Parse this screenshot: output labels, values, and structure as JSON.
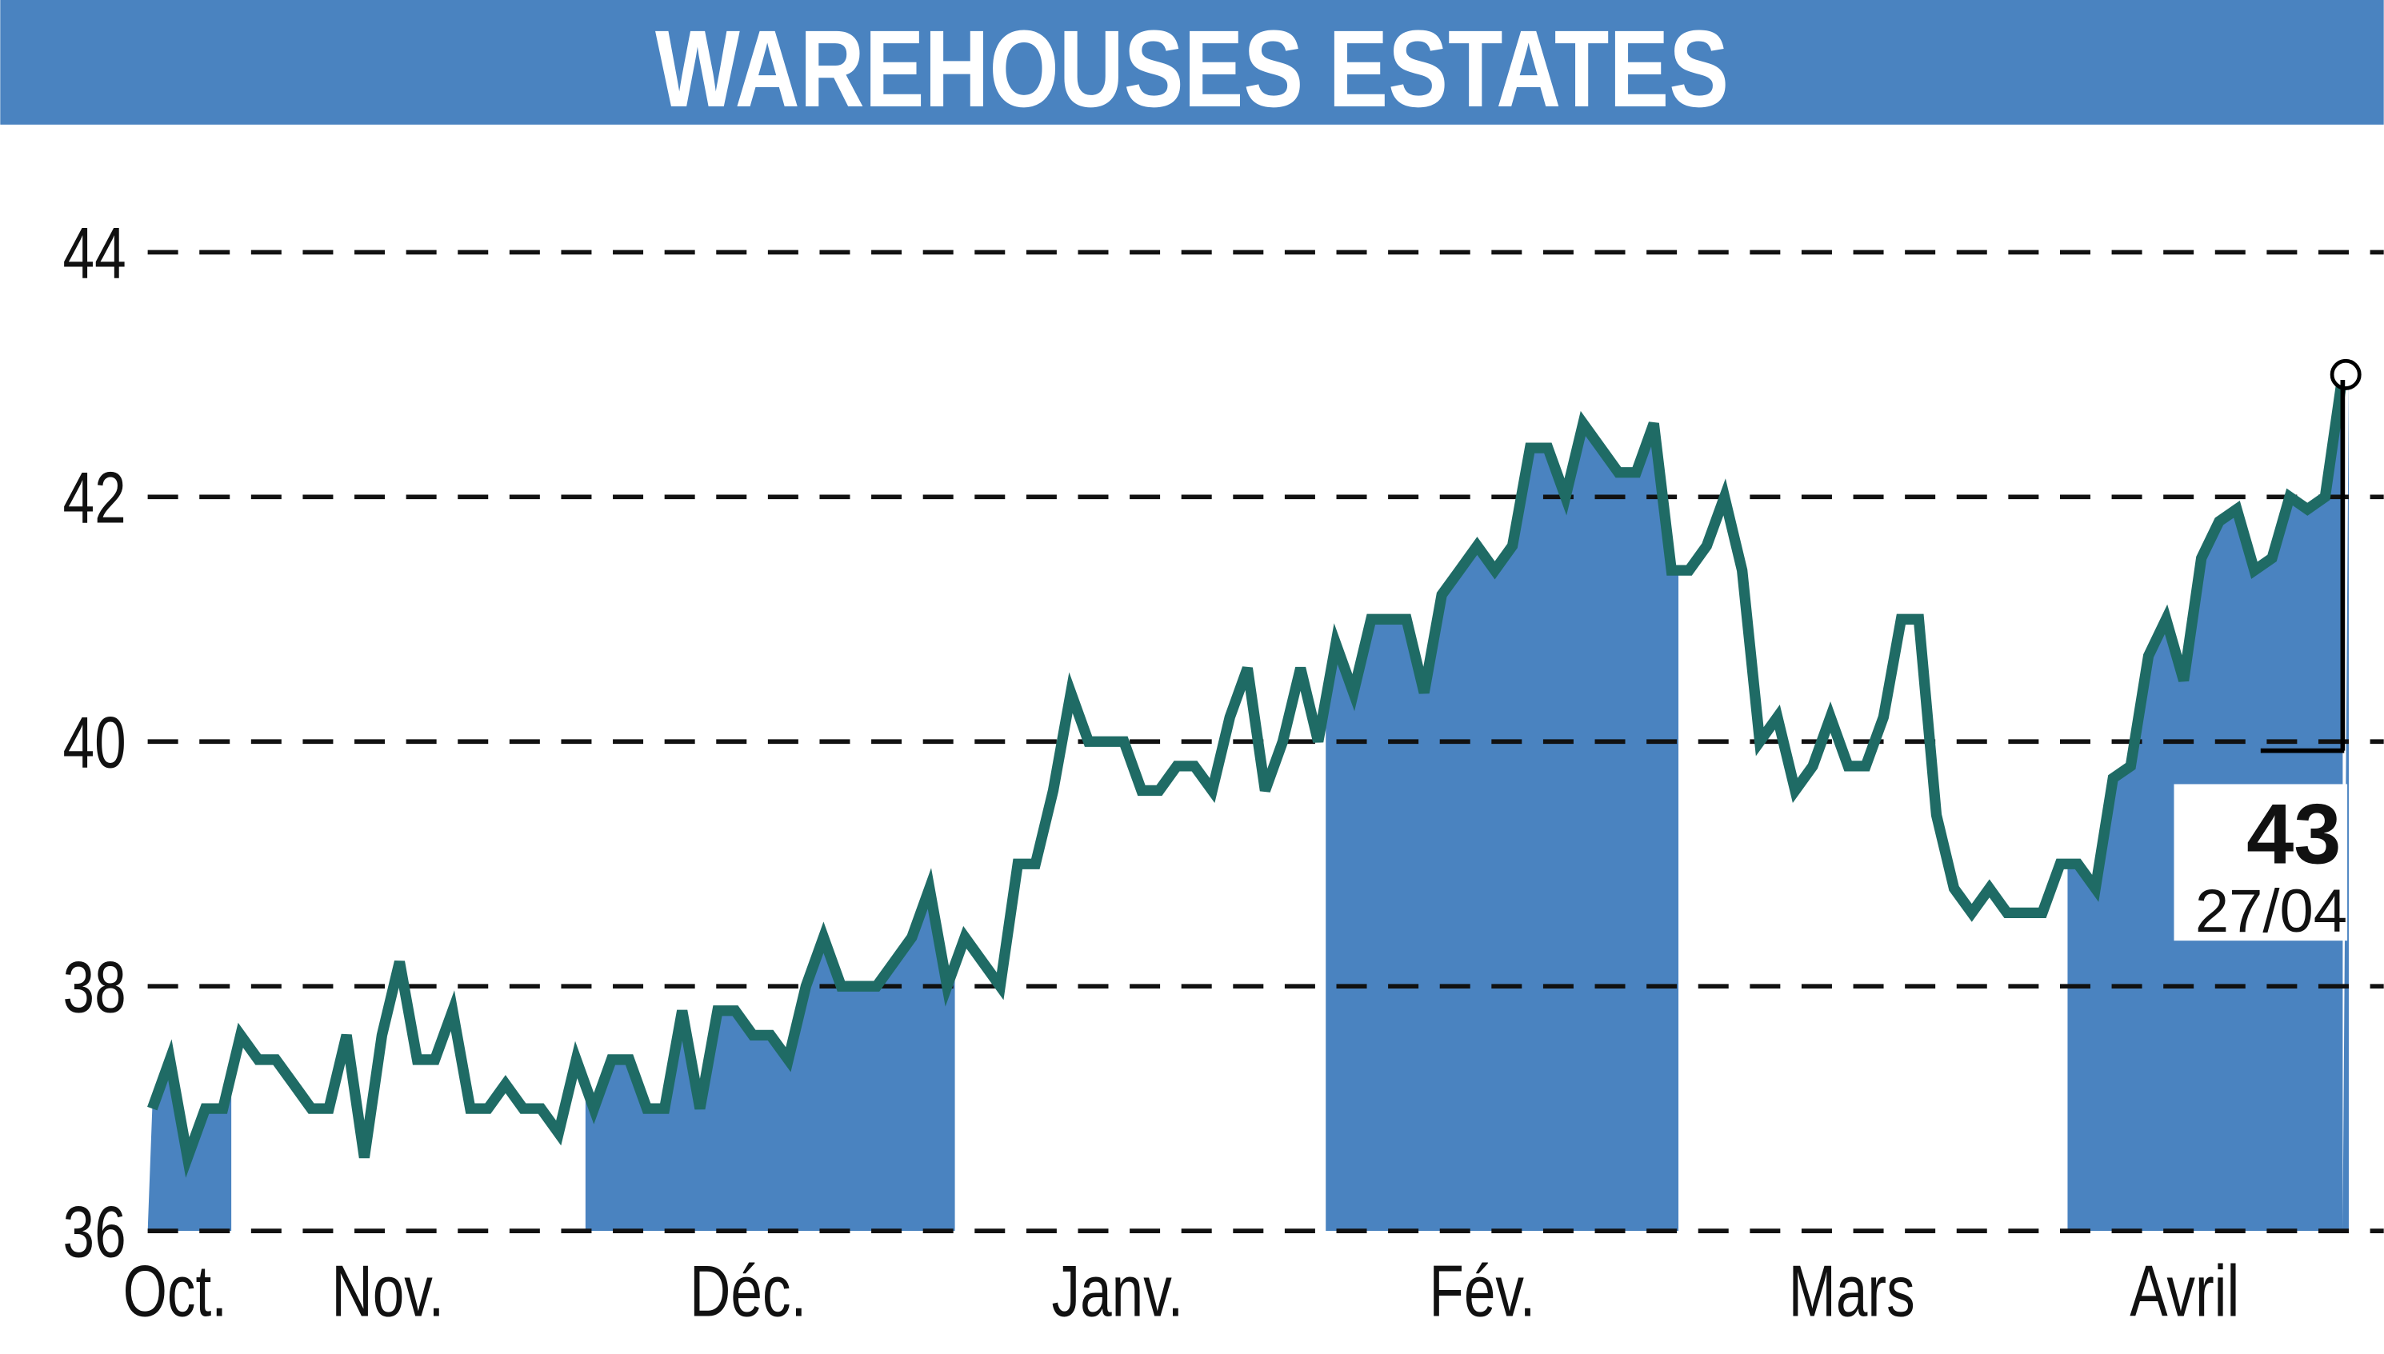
{
  "chart_data": {
    "type": "line",
    "title": "WAREHOUSES ESTATES",
    "xlabel": "",
    "ylabel": "",
    "ylim": [
      36,
      44
    ],
    "y_ticks": [
      "36",
      "38",
      "40",
      "42",
      "44"
    ],
    "x_tick_labels": [
      "Oct.",
      "Nov.",
      "Déc.",
      "Janv.",
      "Fév.",
      "Mars",
      "Avril"
    ],
    "grid": "horizontal dashed",
    "fill": "alternate months shaded",
    "colors": {
      "title_bar": "#4a83c0",
      "line": "#1f6b65",
      "fill": "#4a83c0",
      "grid": "#111111"
    },
    "series": [
      {
        "values": [
          37.0,
          37.4,
          36.6,
          37.0,
          37.0,
          37.6,
          37.4,
          37.4,
          37.2,
          37.0,
          37.0,
          37.6,
          36.6,
          37.6,
          38.2,
          37.4,
          37.4,
          37.8,
          37.0,
          37.0,
          37.2,
          37.0,
          37.0,
          36.8,
          37.4,
          37.0,
          37.4,
          37.4,
          37.0,
          37.0,
          37.8,
          37.0,
          37.8,
          37.8,
          37.6,
          37.6,
          37.4,
          38.0,
          38.4,
          38.0,
          38.0,
          38.0,
          38.2,
          38.4,
          38.8,
          38.0,
          38.4,
          38.2,
          38.0,
          39.0,
          39.0,
          39.6,
          40.4,
          40.0,
          40.0,
          40.0,
          39.6,
          39.6,
          39.8,
          39.8,
          39.6,
          40.2,
          40.6,
          39.6,
          40.0,
          40.6,
          40.0,
          40.8,
          40.4,
          41.0,
          41.0,
          41.0,
          40.4,
          41.2,
          41.4,
          41.6,
          41.4,
          41.6,
          42.4,
          42.4,
          42.0,
          42.6,
          42.4,
          42.2,
          42.2,
          42.6,
          41.4,
          41.4,
          41.6,
          42.0,
          41.4,
          40.0,
          40.2,
          39.6,
          39.8,
          40.2,
          39.8,
          39.8,
          40.2,
          41.0,
          41.0,
          39.4,
          38.8,
          38.6,
          38.8,
          38.6,
          38.6,
          38.6,
          39.0,
          39.0,
          38.8,
          39.7,
          39.8,
          40.7,
          41.0,
          40.5,
          41.5,
          41.8,
          41.9,
          41.4,
          41.5,
          42.0,
          41.9,
          42.0,
          43.0
        ]
      }
    ],
    "last_value": {
      "value": "43",
      "date": "27/04"
    }
  }
}
